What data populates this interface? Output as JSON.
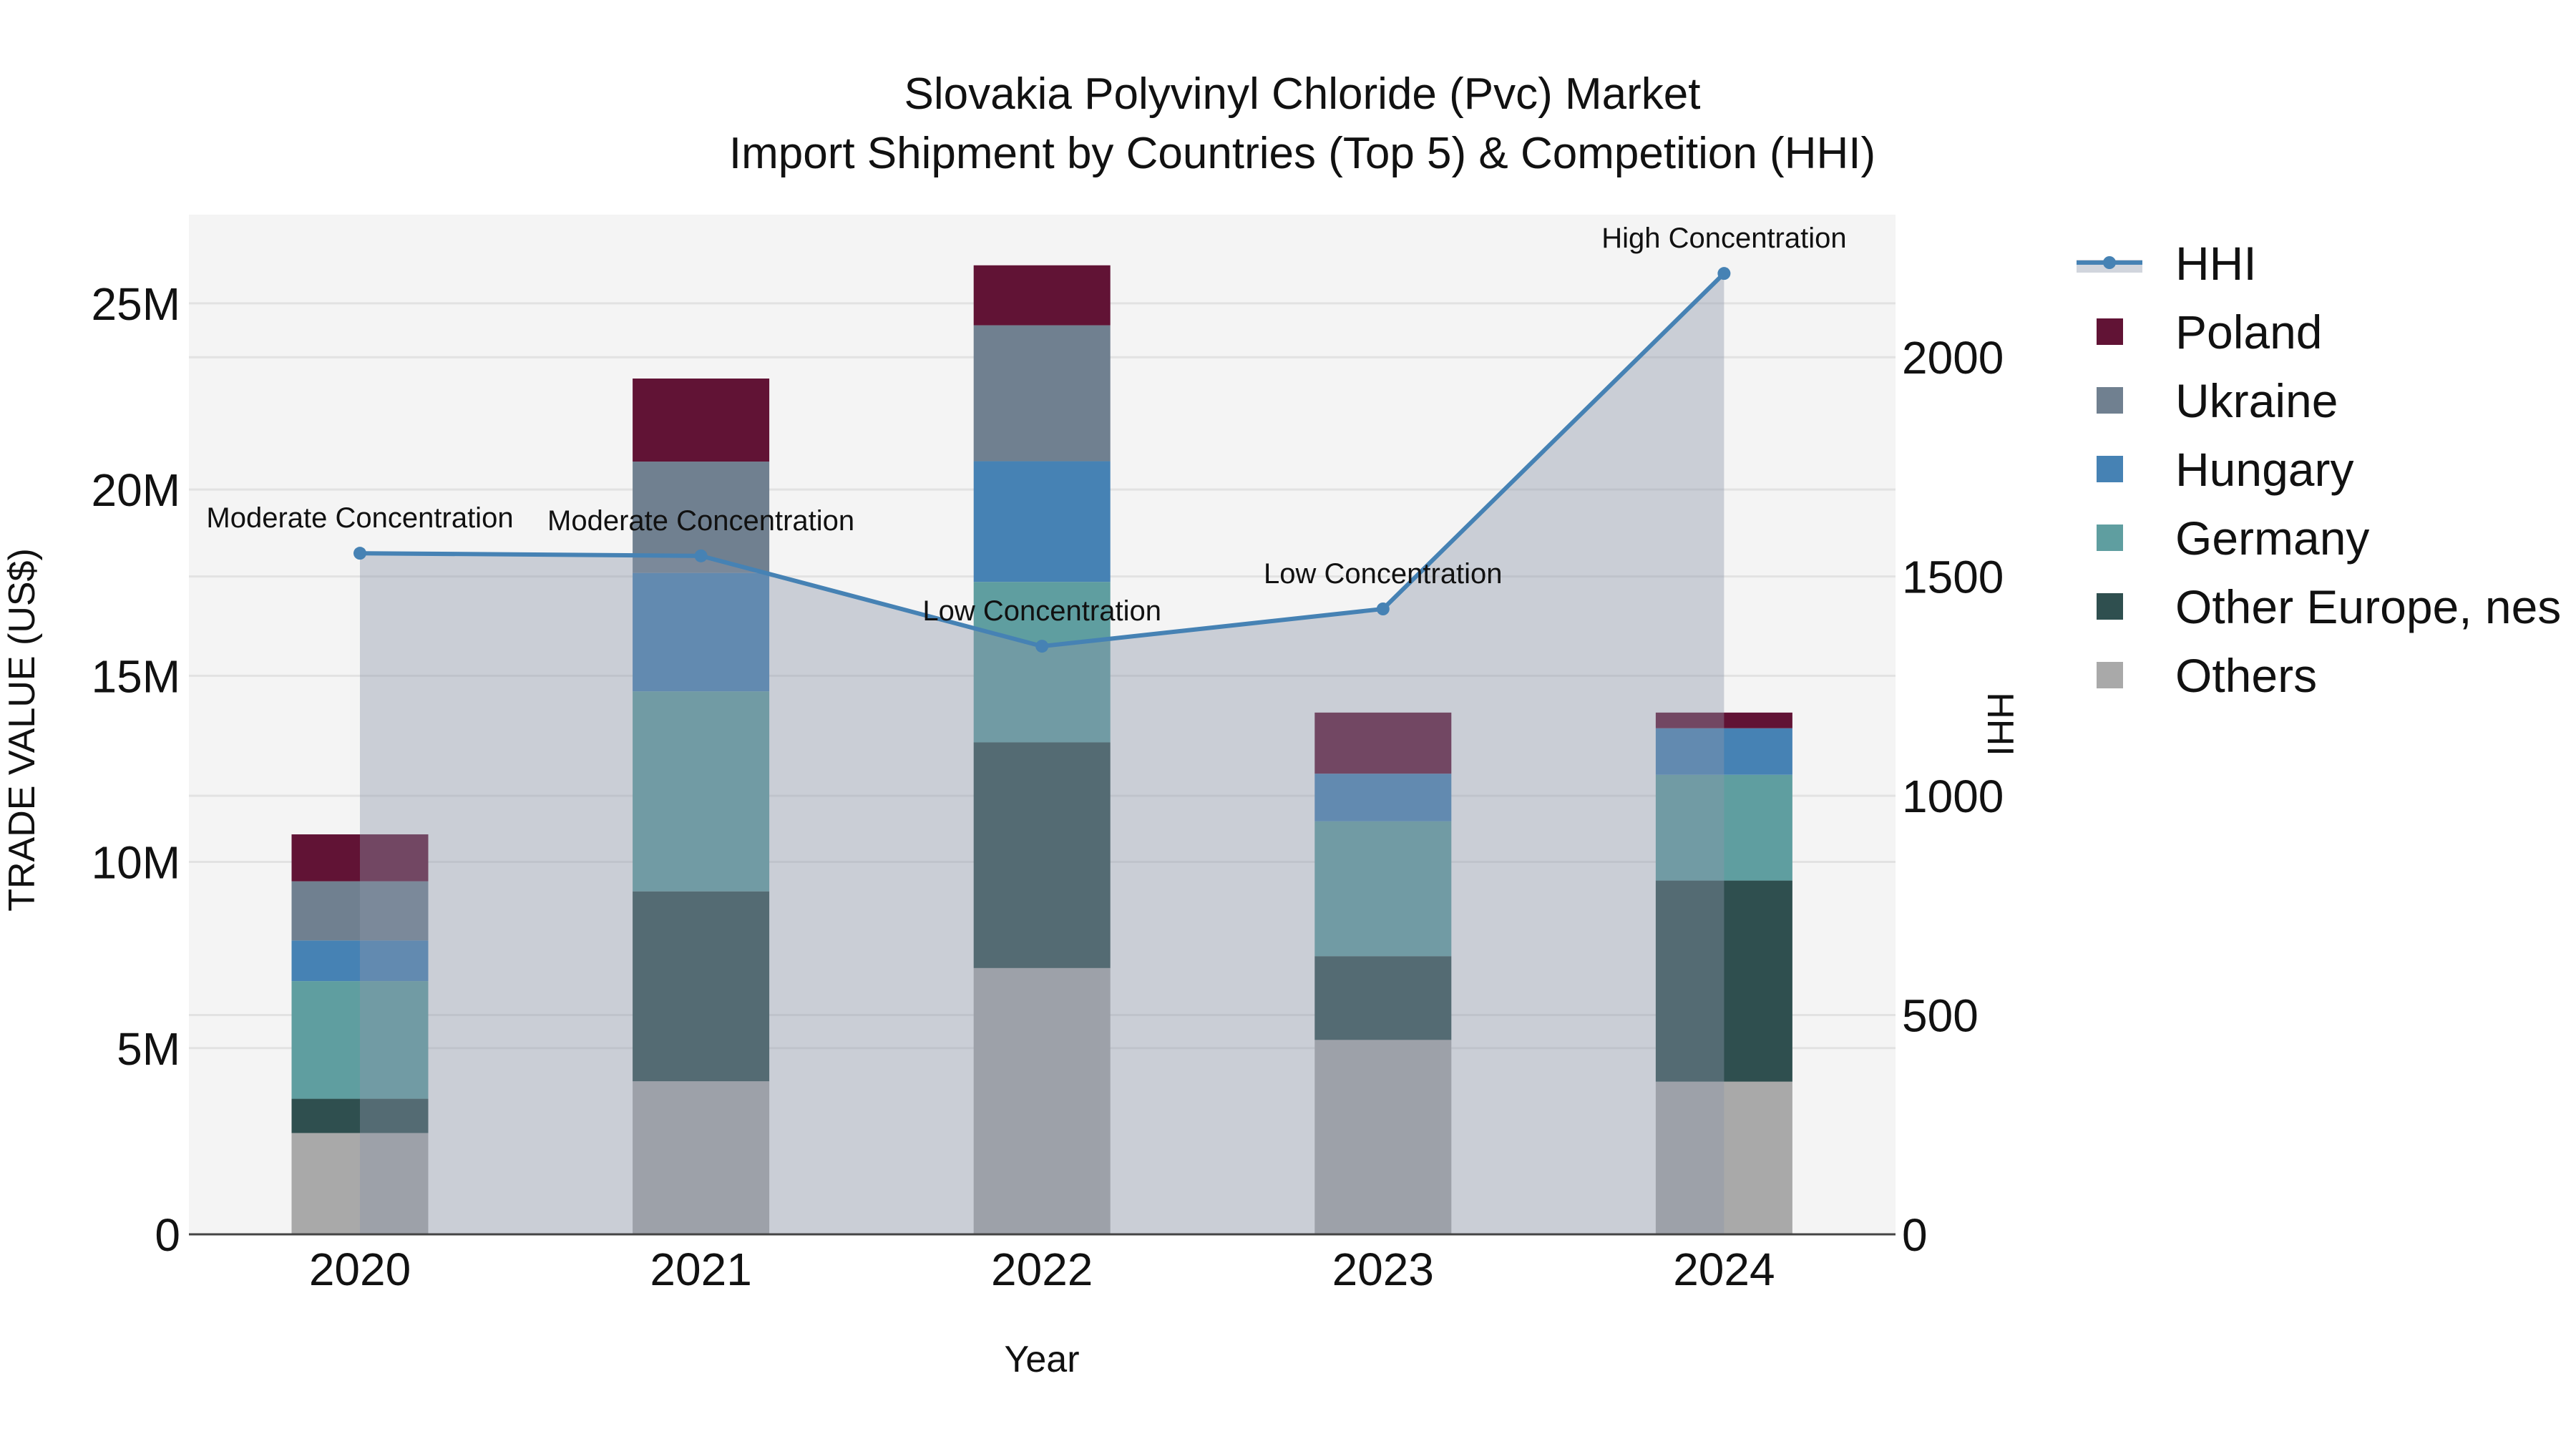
{
  "chart_data": {
    "type": "bar",
    "stacked": true,
    "title": "Slovakia Polyvinyl Chloride (Pvc) Market",
    "subtitle": "Import Shipment by Countries (Top 5) & Competition (HHI)",
    "xlabel": "Year",
    "ylabel": "TRADE VALUE (US$)",
    "y2label": "HHI",
    "categories": [
      "2020",
      "2021",
      "2022",
      "2023",
      "2024"
    ],
    "ylim": [
      0,
      27380000
    ],
    "y2lim": [
      0,
      2325
    ],
    "yticks": [
      {
        "value": 0,
        "label": "0"
      },
      {
        "value": 5000000,
        "label": "5M"
      },
      {
        "value": 10000000,
        "label": "10M"
      },
      {
        "value": 15000000,
        "label": "15M"
      },
      {
        "value": 20000000,
        "label": "20M"
      },
      {
        "value": 25000000,
        "label": "25M"
      }
    ],
    "y2ticks": [
      {
        "value": 0,
        "label": "0"
      },
      {
        "value": 500,
        "label": "500"
      },
      {
        "value": 1000,
        "label": "1000"
      },
      {
        "value": 1500,
        "label": "1500"
      },
      {
        "value": 2000,
        "label": "2000"
      }
    ],
    "grid": true,
    "legend_position": "right",
    "series": [
      {
        "name": "Others",
        "color": "#a9a9a9",
        "values": [
          2720000,
          4110000,
          7150000,
          5220000,
          4100000
        ]
      },
      {
        "name": "Other Europe, nes",
        "color": "#2f4f4f",
        "values": [
          920000,
          5100000,
          6060000,
          2250000,
          5400000
        ]
      },
      {
        "name": "Germany",
        "color": "#5f9ea0",
        "values": [
          3160000,
          5370000,
          4310000,
          3620000,
          2840000
        ]
      },
      {
        "name": "Hungary",
        "color": "#4682b4",
        "values": [
          1090000,
          3180000,
          3240000,
          1280000,
          1250000
        ]
      },
      {
        "name": "Ukraine",
        "color": "#708090",
        "values": [
          1590000,
          2990000,
          3650000,
          0,
          0
        ]
      },
      {
        "name": "Poland",
        "color": "#611335",
        "values": [
          1260000,
          2230000,
          1610000,
          1640000,
          420000
        ]
      }
    ],
    "line_series": {
      "name": "HHI",
      "axis": "y2",
      "color": "#4682b4",
      "area_fill": "rgba(140,150,170,0.4)",
      "values": [
        1553,
        1547,
        1341,
        1426,
        2191
      ],
      "annotations": [
        "Moderate Concentration",
        "Moderate Concentration",
        "Low Concentration",
        "Low Concentration",
        "High Concentration"
      ]
    },
    "legend": [
      "HHI",
      "Poland",
      "Ukraine",
      "Hungary",
      "Germany",
      "Other Europe, nes",
      "Others"
    ]
  }
}
